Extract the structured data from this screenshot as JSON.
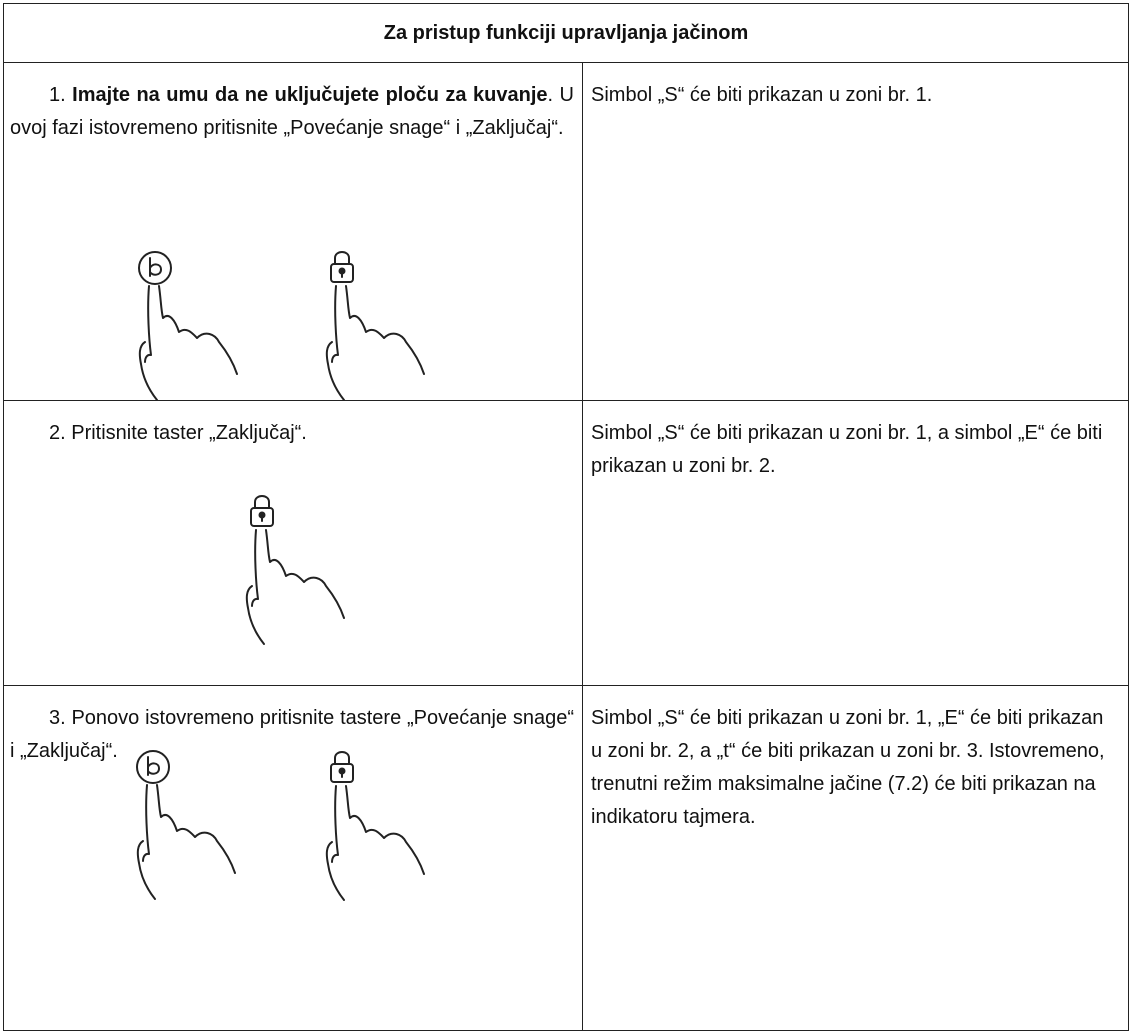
{
  "table": {
    "header": "Za pristup funkciji upravljanja jačinom",
    "rows": [
      {
        "left": [
          "1. ",
          "Imajte na umu da ne uključujete ploču za kuvanje",
          ". U ovoj fazi istovremeno pritisnite „Povećanje snage“ i „Zaključaj“."
        ],
        "right": "Simbol „S“ će biti prikazan u zoni br. 1."
      },
      {
        "left": [
          "2. Pritisnite taster „Zaključaj“."
        ],
        "right": "Simbol „S“ će biti prikazan u zoni br. 1, a simbol „E“ će biti prikazan u zoni br. 2."
      },
      {
        "left": [
          "3. Ponovo istovremeno pritisnite tastere „Povećanje snage“ i „Zaključaj“."
        ],
        "right": "Simbol „S“ će biti prikazan u zoni br. 1, „E“ će biti prikazan u zoni br. 2, a „t“ će biti prikazan u zoni br. 3. Istovremeno, trenutni režim maksimalne jačine (7.2) će biti prikazan na indikatoru tajmera."
      }
    ]
  }
}
